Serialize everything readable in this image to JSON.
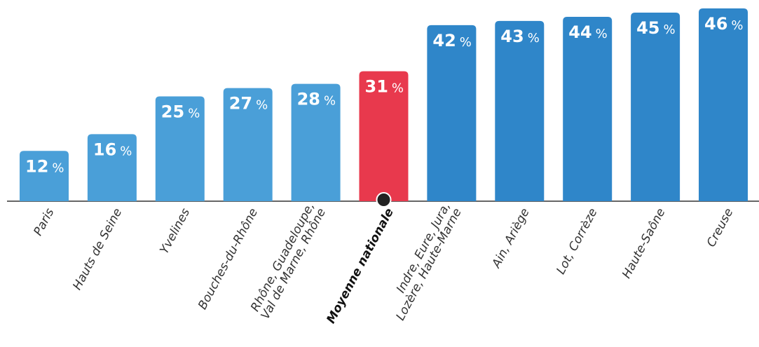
{
  "chart_data": {
    "type": "bar",
    "categories": [
      [
        "Paris"
      ],
      [
        "Hauts de Seine"
      ],
      [
        "Yvelines"
      ],
      [
        "Bouches-du-Rhône"
      ],
      [
        "Rhône, Guadeloupe,",
        "Val de Marne, Rhône"
      ],
      [
        "Moyenne nationale"
      ],
      [
        "Indre, Eure, Jura,",
        "Lozère, Haute-Marne"
      ],
      [
        "Ain, Ariège"
      ],
      [
        "Lot, Corrèze"
      ],
      [
        "Haute-Saône"
      ],
      [
        "Creuse"
      ]
    ],
    "values": [
      12,
      16,
      25,
      27,
      28,
      31,
      42,
      43,
      44,
      45,
      46
    ],
    "unit": "%",
    "highlight_index": 5,
    "ylim": [
      0,
      46
    ],
    "colors": {
      "low": "#4a9fd8",
      "high": "#2f86c9",
      "highlight": "#e8394d",
      "baseline": "#333333",
      "marker": "#222222"
    }
  }
}
